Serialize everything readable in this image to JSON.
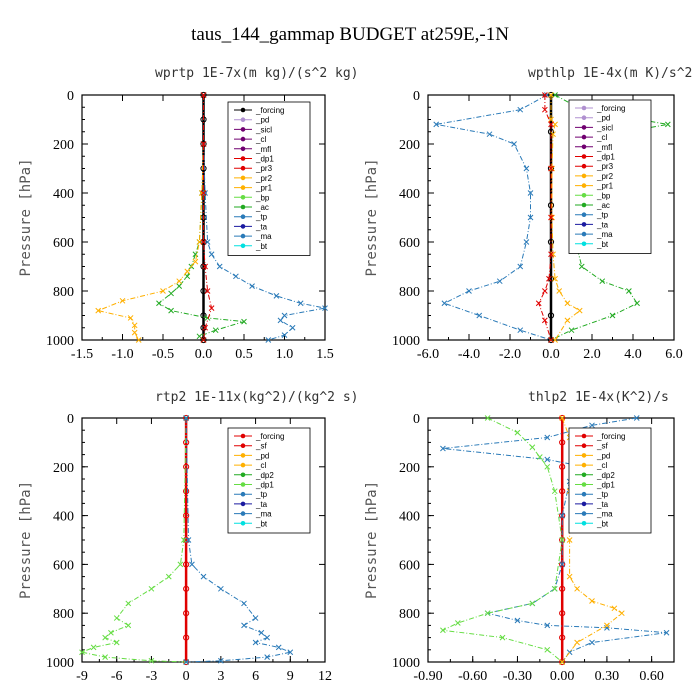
{
  "figure": {
    "title": "taus_144_gammap  BUDGET at259E,-1N",
    "ylabel": "Pressure [hPa]"
  },
  "colors": {
    "forcing": "#000000",
    "red": "#e00000",
    "orange": "#ffb000",
    "green": "#22aa22",
    "lightgreen": "#66dd44",
    "blue": "#2a7ab8",
    "navy": "#1a1aa0",
    "purple": "#700070",
    "lilac": "#b090d0",
    "cyan": "#00e0e0"
  },
  "chart_data": [
    {
      "type": "line",
      "title": "wprtp  1E-7x(m kg)/(s^2 kg)",
      "ylabel": "Pressure [hPa]",
      "xlim": [
        -1.5,
        1.5
      ],
      "ylim": [
        1000,
        0
      ],
      "xticks": [
        "-1.5",
        "-1.0",
        "-0.5",
        "0.0",
        "0.5",
        "1.0",
        "1.5"
      ],
      "xtick_values": [
        -1.5,
        -1.0,
        -0.5,
        0.0,
        0.5,
        1.0,
        1.5
      ],
      "yticks": [
        "0",
        "200",
        "400",
        "600",
        "800",
        "1000"
      ],
      "ytick_values": [
        0,
        200,
        400,
        600,
        800,
        1000
      ],
      "legend": [
        "_forcing",
        "_pd",
        "_sicl",
        "_cl",
        "_mfl",
        "_dp1",
        "_pr3",
        "_pr2",
        "_pr1",
        "_bp",
        "_ac",
        "_tp",
        "_ta",
        "_ma",
        "_bt"
      ],
      "legend_colors": [
        "forcing",
        "lilac",
        "purple",
        "purple",
        "purple",
        "red",
        "red",
        "orange",
        "orange",
        "lightgreen",
        "green",
        "blue",
        "navy",
        "blue",
        "cyan"
      ],
      "series": [
        {
          "name": "_forcing",
          "color": "forcing",
          "x": [
            0,
            0,
            0,
            0,
            0,
            0,
            0,
            0,
            0,
            0,
            0,
            0
          ],
          "y": [
            0,
            100,
            200,
            300,
            400,
            500,
            600,
            700,
            800,
            900,
            950,
            1000
          ]
        },
        {
          "name": "_ac",
          "color": "green",
          "x": [
            0,
            0,
            -0.02,
            -0.05,
            -0.1,
            -0.15,
            -0.2,
            -0.3,
            -0.4,
            -0.55,
            -0.4,
            0.05,
            0.5,
            0.15,
            -0.05,
            0
          ],
          "y": [
            0,
            200,
            400,
            600,
            650,
            700,
            740,
            780,
            810,
            850,
            880,
            910,
            925,
            960,
            985,
            1000
          ]
        },
        {
          "name": "_pr1",
          "color": "orange",
          "x": [
            0,
            0,
            -0.02,
            -0.05,
            -0.1,
            -0.2,
            -0.3,
            -0.5,
            -1.0,
            -1.3,
            -0.9,
            -0.85,
            -0.85,
            -0.8
          ],
          "y": [
            0,
            200,
            400,
            600,
            680,
            720,
            760,
            800,
            840,
            880,
            910,
            940,
            970,
            1000
          ]
        },
        {
          "name": "_tp",
          "color": "blue",
          "x": [
            0,
            0,
            0.02,
            0.05,
            0.1,
            0.2,
            0.4,
            0.6,
            0.9,
            1.2,
            1.5,
            1.0,
            0.95,
            1.1,
            1.0,
            0.8
          ],
          "y": [
            0,
            200,
            400,
            600,
            650,
            700,
            740,
            780,
            820,
            850,
            870,
            900,
            920,
            950,
            980,
            1000
          ]
        },
        {
          "name": "_dp1",
          "color": "red",
          "x": [
            0,
            0,
            0,
            0,
            0.02,
            0.05,
            0.1,
            0.02,
            0.0
          ],
          "y": [
            0,
            200,
            400,
            600,
            700,
            800,
            870,
            950,
            1000
          ]
        }
      ]
    },
    {
      "type": "line",
      "title": "wpthlp  1E-4x(m K)/s^2",
      "ylabel": "Pressure [hPa]",
      "xlim": [
        -6.0,
        6.0
      ],
      "ylim": [
        1000,
        0
      ],
      "xticks": [
        "-6.0",
        "-4.0",
        "-2.0",
        "0.0",
        "2.0",
        "4.0",
        "6.0"
      ],
      "xtick_values": [
        -6.0,
        -4.0,
        -2.0,
        0.0,
        2.0,
        4.0,
        6.0
      ],
      "yticks": [
        "0",
        "200",
        "400",
        "600",
        "800",
        "1000"
      ],
      "ytick_values": [
        0,
        200,
        400,
        600,
        800,
        1000
      ],
      "legend": [
        "_forcing",
        "_pd",
        "_sicl",
        "_cl",
        "_mfl",
        "_dp1",
        "_pr3",
        "_pr2",
        "_pr1",
        "_bp",
        "_ac",
        "_tp",
        "_ta",
        "_ma",
        "_bt"
      ],
      "legend_colors": [
        "lilac",
        "lilac",
        "purple",
        "purple",
        "purple",
        "red",
        "red",
        "orange",
        "orange",
        "lightgreen",
        "green",
        "blue",
        "navy",
        "blue",
        "cyan"
      ],
      "series": [
        {
          "name": "_forcing",
          "color": "forcing",
          "x": [
            0,
            0,
            0,
            0,
            0,
            0,
            0,
            0
          ],
          "y": [
            0,
            150,
            300,
            450,
            600,
            750,
            900,
            1000
          ]
        },
        {
          "name": "_tp",
          "color": "blue",
          "x": [
            -0.2,
            -1.5,
            -5.6,
            -3.0,
            -1.8,
            -1.2,
            -1.0,
            -1.0,
            -1.2,
            -1.5,
            -2.5,
            -4.0,
            -5.2,
            -3.5,
            -1.5,
            0.0
          ],
          "y": [
            0,
            60,
            120,
            160,
            200,
            300,
            400,
            500,
            600,
            700,
            760,
            800,
            850,
            900,
            960,
            1000
          ]
        },
        {
          "name": "_ac",
          "color": "green",
          "x": [
            0.2,
            1.5,
            5.7,
            3.0,
            1.8,
            1.2,
            1.0,
            1.0,
            1.2,
            1.5,
            2.5,
            3.8,
            4.2,
            3.0,
            1.0,
            0.0
          ],
          "y": [
            0,
            60,
            120,
            160,
            200,
            300,
            400,
            500,
            600,
            700,
            760,
            800,
            850,
            900,
            960,
            1000
          ]
        },
        {
          "name": "_pr1",
          "color": "orange",
          "x": [
            0,
            0,
            0.2,
            0.1,
            0.05,
            0.05,
            0.1,
            0.2,
            0.4,
            0.8,
            1.4,
            0.8,
            0.2
          ],
          "y": [
            0,
            100,
            120,
            160,
            300,
            500,
            650,
            750,
            800,
            850,
            880,
            920,
            1000
          ]
        },
        {
          "name": "_dp1",
          "color": "red",
          "x": [
            -0.3,
            -0.3,
            0,
            0,
            0,
            0,
            -0.1,
            -0.3,
            -0.6,
            -0.3,
            0
          ],
          "y": [
            0,
            60,
            120,
            300,
            500,
            650,
            750,
            800,
            850,
            920,
            1000
          ]
        }
      ]
    },
    {
      "type": "line",
      "title": "rtp2  1E-11x(kg^2)/(kg^2 s)",
      "ylabel": "Pressure [hPa]",
      "xlim": [
        -9,
        12
      ],
      "ylim": [
        1000,
        0
      ],
      "xticks": [
        "-9",
        "-6",
        "-3",
        "0",
        "3",
        "6",
        "9",
        "12"
      ],
      "xtick_values": [
        -9,
        -6,
        -3,
        0,
        3,
        6,
        9,
        12
      ],
      "yticks": [
        "0",
        "200",
        "400",
        "600",
        "800",
        "1000"
      ],
      "ytick_values": [
        0,
        200,
        400,
        600,
        800,
        1000
      ],
      "legend": [
        "_forcing",
        "_sf",
        "_pd",
        "_cl",
        "_dp2",
        "_dp1",
        "_tp",
        "_ta",
        "_ma",
        "_bt"
      ],
      "legend_colors": [
        "red",
        "red",
        "orange",
        "orange",
        "green",
        "lightgreen",
        "blue",
        "navy",
        "blue",
        "cyan"
      ],
      "series": [
        {
          "name": "_forcing",
          "color": "red",
          "x": [
            0,
            0,
            0,
            0,
            0,
            0,
            0,
            0,
            0,
            0,
            0
          ],
          "y": [
            0,
            100,
            200,
            300,
            400,
            500,
            600,
            700,
            800,
            900,
            1000
          ]
        },
        {
          "name": "_dp1",
          "color": "lightgreen",
          "x": [
            0,
            -0.2,
            -0.5,
            -1.5,
            -3,
            -5,
            -6,
            -5,
            -6.5,
            -7,
            -6,
            -8,
            -9,
            -7,
            -3,
            0
          ],
          "y": [
            0,
            500,
            600,
            650,
            700,
            760,
            820,
            850,
            880,
            900,
            920,
            940,
            960,
            980,
            995,
            1000
          ]
        },
        {
          "name": "_tp",
          "color": "blue",
          "x": [
            0,
            0.2,
            0.5,
            1.5,
            3,
            5,
            6,
            5,
            6.5,
            7,
            6,
            8,
            9,
            7,
            3,
            0
          ],
          "y": [
            0,
            500,
            600,
            650,
            700,
            760,
            820,
            850,
            880,
            900,
            920,
            940,
            960,
            980,
            995,
            1000
          ]
        }
      ]
    },
    {
      "type": "line",
      "title": "thlp2  1E-4x(K^2)/s",
      "ylabel": "Pressure [hPa]",
      "xlim": [
        -0.9,
        0.75
      ],
      "ylim": [
        1000,
        0
      ],
      "xticks": [
        "-0.90",
        "-0.60",
        "-0.30",
        "0.00",
        "0.30",
        "0.60"
      ],
      "xtick_values": [
        -0.9,
        -0.6,
        -0.3,
        0.0,
        0.3,
        0.6
      ],
      "yticks": [
        "0",
        "200",
        "400",
        "600",
        "800",
        "1000"
      ],
      "ytick_values": [
        0,
        200,
        400,
        600,
        800,
        1000
      ],
      "legend": [
        "_forcing",
        "_sf",
        "_pd",
        "_cl",
        "_dp2",
        "_dp1",
        "_tp",
        "_ta",
        "_ma",
        "_bt"
      ],
      "legend_colors": [
        "red",
        "red",
        "orange",
        "orange",
        "green",
        "lightgreen",
        "blue",
        "navy",
        "blue",
        "cyan"
      ],
      "series": [
        {
          "name": "_forcing",
          "color": "red",
          "x": [
            0,
            0,
            0,
            0,
            0,
            0,
            0,
            0,
            0,
            0,
            0
          ],
          "y": [
            0,
            100,
            200,
            300,
            400,
            500,
            600,
            700,
            800,
            900,
            1000
          ]
        },
        {
          "name": "_tp",
          "color": "blue",
          "x": [
            0.5,
            0.2,
            -0.1,
            -0.8,
            -0.1,
            0.15,
            0.05,
            0,
            0,
            -0.05,
            -0.2,
            -0.5,
            -0.3,
            -0.1,
            0.3,
            0.7,
            0.2,
            0.05,
            0
          ],
          "y": [
            0,
            30,
            80,
            125,
            170,
            200,
            260,
            400,
            600,
            700,
            760,
            800,
            830,
            850,
            860,
            880,
            920,
            960,
            1000
          ]
        },
        {
          "name": "_dp1",
          "color": "lightgreen",
          "x": [
            -0.5,
            -0.3,
            -0.2,
            -0.15,
            -0.1,
            -0.05,
            0,
            -0.05,
            -0.2,
            -0.5,
            -0.7,
            -0.8,
            -0.4,
            -0.1,
            0
          ],
          "y": [
            0,
            60,
            120,
            160,
            200,
            300,
            500,
            700,
            760,
            800,
            840,
            870,
            900,
            950,
            1000
          ]
        },
        {
          "name": "_pd",
          "color": "orange",
          "x": [
            0,
            0.05,
            0.55,
            0.25,
            0.1,
            0.05,
            0.05,
            0.05,
            0.1,
            0.2,
            0.35,
            0.4,
            0.3,
            0.1,
            0
          ],
          "y": [
            0,
            80,
            120,
            150,
            200,
            300,
            500,
            650,
            700,
            750,
            780,
            800,
            850,
            920,
            1000
          ]
        }
      ]
    }
  ]
}
